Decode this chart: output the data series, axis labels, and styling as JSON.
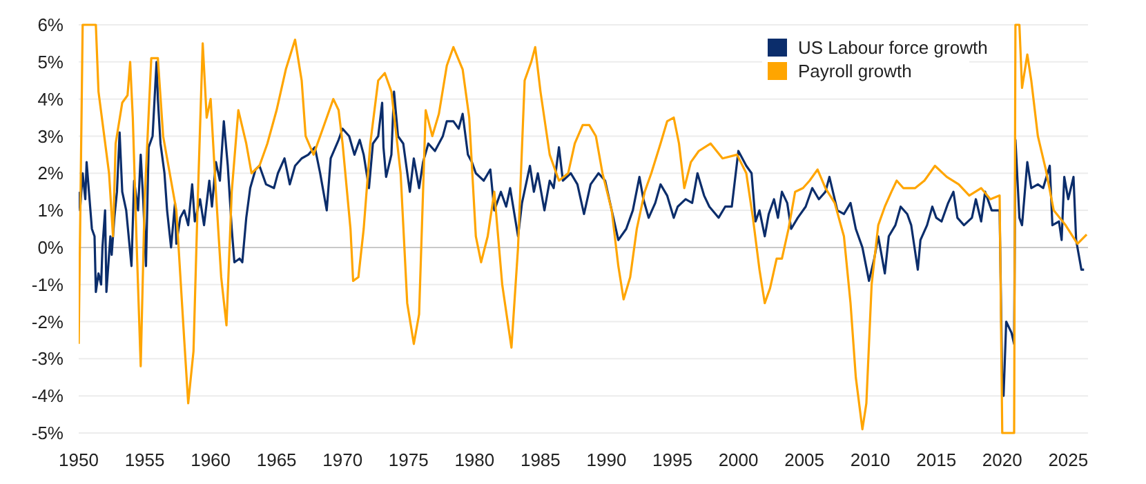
{
  "chart_data": {
    "type": "line",
    "xlim": [
      1950,
      2026.5
    ],
    "xticks": [
      1950,
      1955,
      1960,
      1965,
      1970,
      1975,
      1980,
      1985,
      1990,
      1995,
      2000,
      2005,
      2010,
      2015,
      2020,
      2025
    ],
    "ylim": [
      -5,
      6
    ],
    "yticks": [
      {
        "value": 6,
        "label": "6%"
      },
      {
        "value": 5,
        "label": "5%"
      },
      {
        "value": 4,
        "label": "4%"
      },
      {
        "value": 3,
        "label": "3%"
      },
      {
        "value": 2,
        "label": "2%"
      },
      {
        "value": 1,
        "label": "1%"
      },
      {
        "value": 0,
        "label": "0%"
      },
      {
        "value": -1,
        "label": "-1%"
      },
      {
        "value": -2,
        "label": "-2%"
      },
      {
        "value": -3,
        "label": "-3%"
      },
      {
        "value": -4,
        "label": "-4%"
      },
      {
        "value": -5,
        "label": "-5%"
      }
    ],
    "grid": "y",
    "legend": "top right",
    "marker": "none",
    "line_style": "solid",
    "series": [
      {
        "name": "US Labour force growth",
        "color": "#0b2d6b",
        "x": [
          1950,
          1950.1,
          1950.3,
          1950.5,
          1950.6,
          1950.8,
          1951,
          1951.2,
          1951.3,
          1951.5,
          1951.7,
          1951.8,
          1952,
          1952.1,
          1952.4,
          1952.5,
          1952.7,
          1952.9,
          1953.1,
          1953.3,
          1953.6,
          1954,
          1954.2,
          1954.5,
          1954.7,
          1954.9,
          1955.1,
          1955.3,
          1955.6,
          1955.9,
          1956,
          1956.2,
          1956.5,
          1956.7,
          1957,
          1957.3,
          1957.4,
          1957.7,
          1958,
          1958.3,
          1958.6,
          1958.8,
          1959.2,
          1959.5,
          1959.9,
          1960.1,
          1960.4,
          1960.7,
          1961,
          1961.3,
          1961.6,
          1961.8,
          1962.2,
          1962.4,
          1962.7,
          1963,
          1963.4,
          1963.7,
          1964.2,
          1964.8,
          1965.1,
          1965.6,
          1966,
          1966.4,
          1966.9,
          1967.4,
          1967.9,
          1968.3,
          1968.8,
          1969.1,
          1969.7,
          1970,
          1970.5,
          1970.9,
          1971.3,
          1971.6,
          1972,
          1972.3,
          1972.7,
          1973,
          1973.1,
          1973.3,
          1973.7,
          1973.9,
          1974.2,
          1974.6,
          1975.1,
          1975.4,
          1975.8,
          1976.1,
          1976.5,
          1977,
          1977.6,
          1977.9,
          1978.4,
          1978.8,
          1979.1,
          1979.5,
          1979.8,
          1980.1,
          1980.7,
          1981.2,
          1981.5,
          1982,
          1982.4,
          1982.7,
          1983.3,
          1983.6,
          1984.2,
          1984.5,
          1984.8,
          1985.3,
          1985.7,
          1986,
          1986.4,
          1986.7,
          1987.3,
          1987.8,
          1988.3,
          1988.8,
          1989.4,
          1989.9,
          1990.4,
          1990.9,
          1991.5,
          1992,
          1992.5,
          1992.8,
          1993.2,
          1993.7,
          1994.1,
          1994.6,
          1995.1,
          1995.4,
          1996,
          1996.5,
          1996.9,
          1997.4,
          1997.8,
          1998.5,
          1999,
          1999.5,
          2000,
          2000.3,
          2000.6,
          2001,
          2001.3,
          2001.6,
          2002,
          2002.3,
          2002.7,
          2003,
          2003.3,
          2003.7,
          2004,
          2004.5,
          2005.1,
          2005.6,
          2006.1,
          2006.6,
          2006.9,
          2007.5,
          2008,
          2008.5,
          2008.9,
          2009.4,
          2009.9,
          2010.3,
          2010.6,
          2011.1,
          2011.4,
          2011.9,
          2012.3,
          2012.8,
          2013.1,
          2013.6,
          2013.8,
          2014.3,
          2014.7,
          2015,
          2015.4,
          2015.9,
          2016.3,
          2016.6,
          2017.1,
          2017.7,
          2018,
          2018.4,
          2018.7,
          2019.2,
          2019.8,
          2020,
          2020.1,
          2020.3,
          2020.7,
          2020.9,
          2021,
          2021.3,
          2021.5,
          2021.9,
          2022.2,
          2022.7,
          2023.1,
          2023.6,
          2023.8,
          2024.3,
          2024.5,
          2024.7,
          2025,
          2025.4,
          2025.6,
          2025.8,
          2026,
          2026.2
        ],
        "values": [
          1.5,
          1,
          2,
          1.3,
          2.3,
          1.4,
          0.5,
          0.3,
          -1.2,
          -0.7,
          -1,
          0,
          1,
          -1.2,
          0.3,
          -0.2,
          0.8,
          1.5,
          3.1,
          1.5,
          1,
          -0.5,
          1.8,
          1,
          2.5,
          1.2,
          -0.5,
          2.7,
          3,
          5,
          4,
          2.8,
          2,
          1,
          0,
          1.2,
          0.1,
          0.8,
          1,
          0.6,
          1.7,
          0.7,
          1.3,
          0.6,
          1.8,
          1.1,
          2.3,
          1.8,
          3.4,
          2.2,
          0.5,
          -0.4,
          -0.3,
          -0.4,
          0.8,
          1.6,
          2.1,
          2.2,
          1.7,
          1.6,
          2,
          2.4,
          1.7,
          2.2,
          2.4,
          2.5,
          2.7,
          2,
          1,
          2.4,
          2.9,
          3.2,
          3,
          2.5,
          2.9,
          2.5,
          1.6,
          2.8,
          3,
          3.9,
          2.7,
          1.9,
          2.5,
          4.2,
          3,
          2.8,
          1.5,
          2.4,
          1.6,
          2.3,
          2.8,
          2.6,
          3,
          3.4,
          3.4,
          3.2,
          3.6,
          2.5,
          2.3,
          2,
          1.8,
          2.1,
          1,
          1.5,
          1.1,
          1.6,
          0.3,
          1.2,
          2.2,
          1.5,
          2,
          1,
          1.8,
          1.6,
          2.7,
          1.8,
          2,
          1.7,
          0.9,
          1.7,
          2,
          1.8,
          1,
          0.2,
          0.5,
          1,
          1.9,
          1.3,
          0.8,
          1.2,
          1.7,
          1.4,
          0.8,
          1.1,
          1.3,
          1.2,
          2,
          1.4,
          1.1,
          0.8,
          1.1,
          1.1,
          2.6,
          2.4,
          2.2,
          2,
          0.7,
          1,
          0.3,
          0.9,
          1.3,
          0.8,
          1.5,
          1.2,
          0.5,
          0.8,
          1.1,
          1.6,
          1.3,
          1.5,
          1.9,
          1,
          0.9,
          1.2,
          0.5,
          0,
          -0.9,
          -0.3,
          0.3,
          -0.7,
          0.3,
          0.6,
          1.1,
          0.9,
          0.6,
          -0.6,
          0.2,
          0.6,
          1.1,
          0.8,
          0.7,
          1.2,
          1.5,
          0.8,
          0.6,
          0.8,
          1.3,
          0.7,
          1.5,
          1,
          1,
          -3.7,
          -4,
          -2,
          -2.3,
          -2.6,
          2.9,
          0.8,
          0.6,
          2.3,
          1.6,
          1.7,
          1.6,
          2.2,
          0.6,
          0.7,
          0.2,
          1.9,
          1.3,
          1.9,
          0.2,
          -0.2,
          -0.6,
          -0.6
        ]
      },
      {
        "name": "Payroll growth",
        "color": "#ffa500",
        "x": [
          1950,
          1950.3,
          1950.5,
          1951.3,
          1951.5,
          1951.9,
          1952.3,
          1952.6,
          1952.8,
          1953.3,
          1953.7,
          1953.9,
          1954.1,
          1954.4,
          1954.7,
          1955,
          1955.5,
          1956,
          1956.4,
          1956.9,
          1957.4,
          1958,
          1958.3,
          1958.7,
          1959,
          1959.4,
          1959.7,
          1960,
          1960.4,
          1960.8,
          1961.2,
          1961.6,
          1962.1,
          1962.7,
          1963.1,
          1963.7,
          1964.3,
          1965,
          1965.7,
          1966.4,
          1966.9,
          1967.2,
          1967.8,
          1968.5,
          1969,
          1969.3,
          1969.7,
          1970,
          1970.6,
          1970.8,
          1971.2,
          1971.6,
          1972.1,
          1972.7,
          1973.2,
          1973.7,
          1974.4,
          1974.9,
          1975.4,
          1975.8,
          1976.3,
          1976.8,
          1977.3,
          1977.9,
          1978.4,
          1979.1,
          1979.6,
          1980.1,
          1980.5,
          1981,
          1981.5,
          1982.1,
          1982.8,
          1983.3,
          1983.8,
          1984.3,
          1984.6,
          1985,
          1985.7,
          1986.4,
          1987.1,
          1987.6,
          1988.2,
          1988.7,
          1989.2,
          1989.7,
          1990.4,
          1990.9,
          1991.3,
          1991.8,
          1992.3,
          1992.9,
          1993.4,
          1994.1,
          1994.6,
          1995.1,
          1995.5,
          1995.9,
          1996.4,
          1997,
          1997.9,
          1998.8,
          1999.9,
          2000.6,
          2001.1,
          2001.6,
          2002,
          2002.4,
          2002.9,
          2003.3,
          2003.8,
          2004.3,
          2004.9,
          2005.4,
          2006,
          2006.6,
          2007.3,
          2008,
          2008.5,
          2008.9,
          2009.4,
          2009.7,
          2010.1,
          2010.6,
          2011.1,
          2011.6,
          2012,
          2012.5,
          2013.4,
          2014.1,
          2014.9,
          2015.8,
          2016.7,
          2017.5,
          2018.4,
          2019.1,
          2019.8,
          2020,
          2020.9,
          2021,
          2021.3,
          2021.5,
          2021.9,
          2022.2,
          2022.7,
          2023.3,
          2023.9,
          2024.8,
          2025.7,
          2026.4
        ],
        "values": [
          -2.6,
          6,
          6,
          6,
          4.2,
          3.1,
          2,
          0.3,
          2.8,
          3.9,
          4.1,
          5,
          3.5,
          0,
          -3.2,
          1.3,
          5.1,
          5.1,
          3,
          2,
          1,
          -2.5,
          -4.2,
          -2.8,
          1,
          5.5,
          3.5,
          4,
          1.5,
          -0.8,
          -2.1,
          1.5,
          3.7,
          2.8,
          2,
          2.2,
          2.8,
          3.7,
          4.8,
          5.6,
          4.5,
          3,
          2.5,
          3.2,
          3.7,
          4,
          3.7,
          2.8,
          0.5,
          -0.9,
          -0.8,
          0.5,
          2.8,
          4.5,
          4.7,
          4.2,
          2,
          -1.5,
          -2.6,
          -1.8,
          3.7,
          3,
          3.6,
          4.9,
          5.4,
          4.8,
          3.5,
          0.3,
          -0.4,
          0.3,
          1.5,
          -1,
          -2.7,
          0,
          4.5,
          5,
          5.4,
          4.2,
          2.5,
          1.8,
          2,
          2.8,
          3.3,
          3.3,
          3,
          2,
          1,
          -0.5,
          -1.4,
          -0.8,
          0.5,
          1.5,
          2,
          2.8,
          3.4,
          3.5,
          2.8,
          1.6,
          2.3,
          2.6,
          2.8,
          2.4,
          2.5,
          2,
          0.8,
          -0.6,
          -1.5,
          -1.1,
          -0.3,
          -0.3,
          0.5,
          1.5,
          1.6,
          1.8,
          2.1,
          1.6,
          1.2,
          0.3,
          -1.5,
          -3.5,
          -4.9,
          -4.2,
          -1,
          0.6,
          1.1,
          1.5,
          1.8,
          1.6,
          1.6,
          1.8,
          2.2,
          1.9,
          1.7,
          1.4,
          1.6,
          1.3,
          1.4,
          -5,
          -5,
          6,
          6,
          4.3,
          5.2,
          4.5,
          3,
          2.1,
          1,
          0.6,
          0.1,
          0.35
        ]
      }
    ]
  }
}
